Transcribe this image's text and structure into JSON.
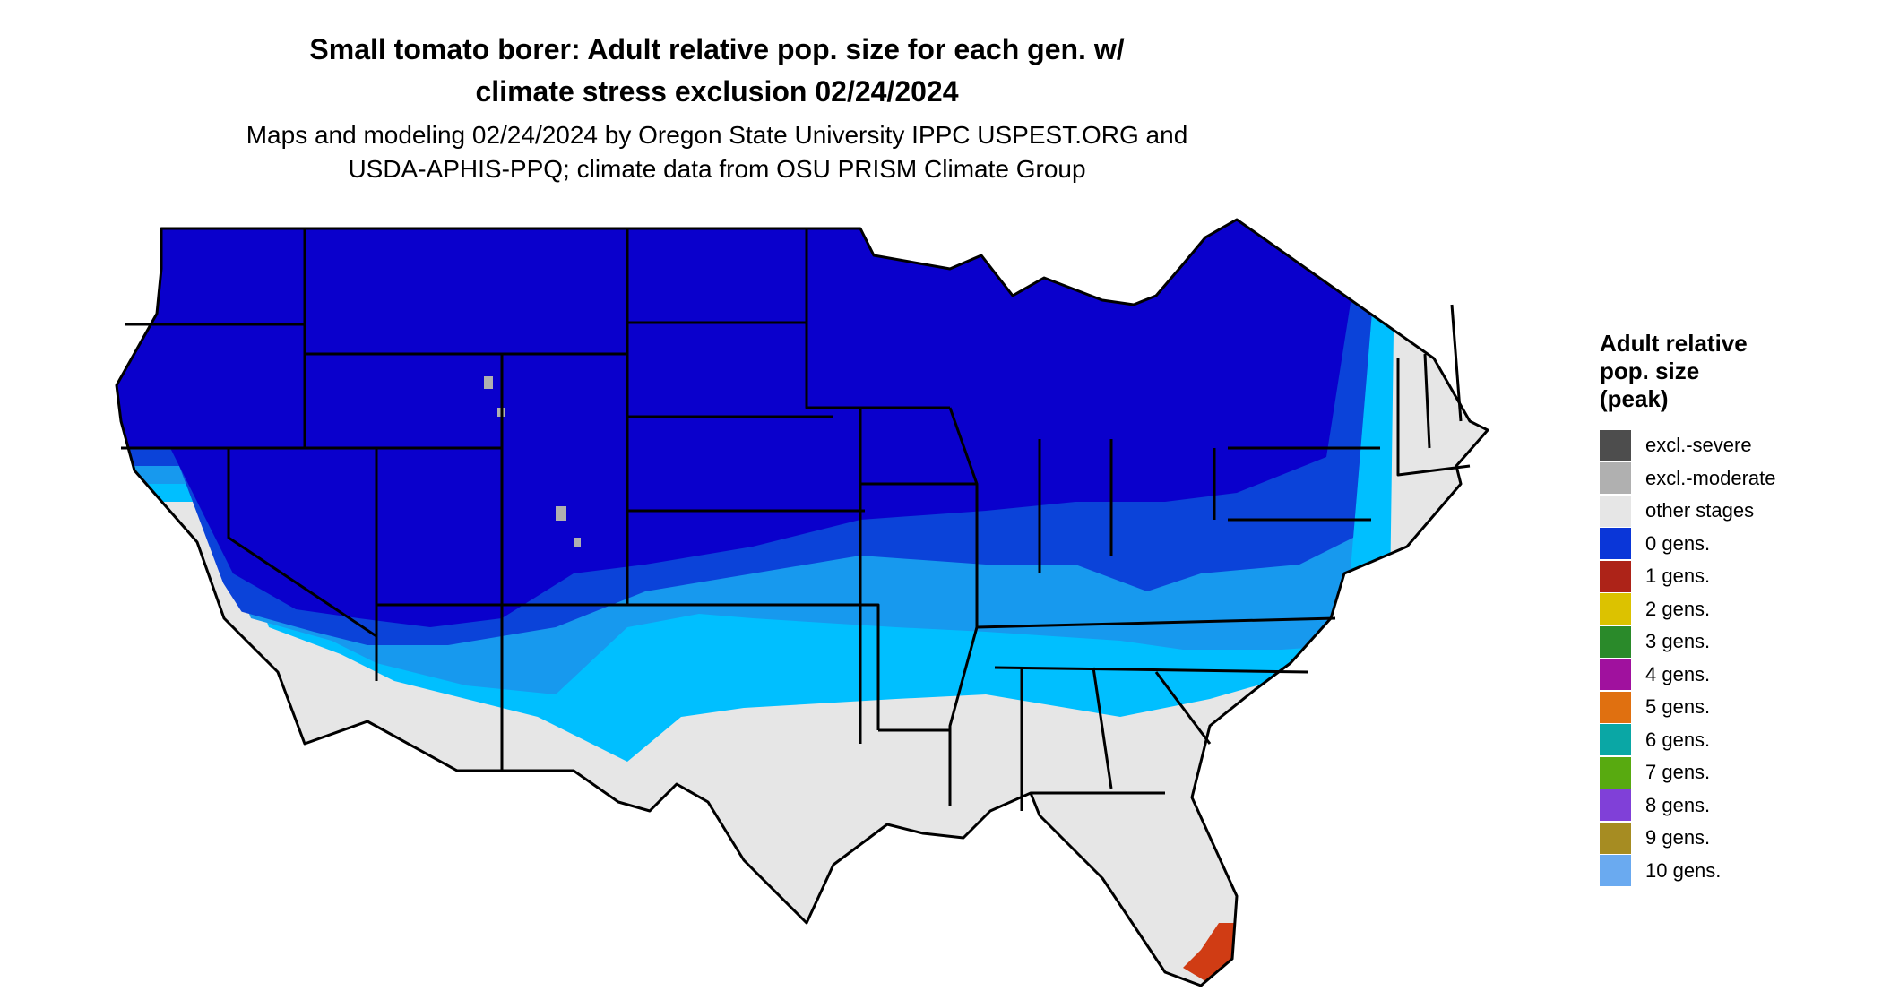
{
  "title_line1": "Small tomato borer: Adult relative pop. size for each gen. w/",
  "title_line2": "climate stress exclusion 02/24/2024",
  "subtitle_line1": "Maps and modeling 02/24/2024 by Oregon State University IPPC USPEST.ORG and",
  "subtitle_line2": "USDA-APHIS-PPQ; climate data from OSU PRISM Climate Group",
  "legend": {
    "title_lines": [
      "Adult relative",
      "pop. size",
      "(peak)"
    ],
    "items": [
      {
        "label": "excl.-severe",
        "color": "#4d4d4d"
      },
      {
        "label": "excl.-moderate",
        "color": "#b0b0b0"
      },
      {
        "label": "other stages",
        "color": "#e6e6e6"
      },
      {
        "label": "0 gens.",
        "color": "#0a36d8"
      },
      {
        "label": "1 gens.",
        "color": "#ad2318"
      },
      {
        "label": "2 gens.",
        "color": "#dcc200"
      },
      {
        "label": "3 gens.",
        "color": "#2a8a2a"
      },
      {
        "label": "4 gens.",
        "color": "#a0119e"
      },
      {
        "label": "5 gens.",
        "color": "#e07010"
      },
      {
        "label": "6 gens.",
        "color": "#0aa7a5"
      },
      {
        "label": "7 gens.",
        "color": "#58aa10"
      },
      {
        "label": "8 gens.",
        "color": "#8040d8"
      },
      {
        "label": "9 gens.",
        "color": "#a68c22"
      },
      {
        "label": "10 gens.",
        "color": "#6aaaf0"
      }
    ]
  },
  "map_colors": {
    "deep_blue": "#0a00cc",
    "mid_blue": "#0b43d9",
    "light_blue": "#1799ee",
    "cyan": "#00bfff",
    "other_stages": "#e6e6e6",
    "gen1_red": "#d03c14",
    "excl_moderate": "#b0b0b0"
  }
}
